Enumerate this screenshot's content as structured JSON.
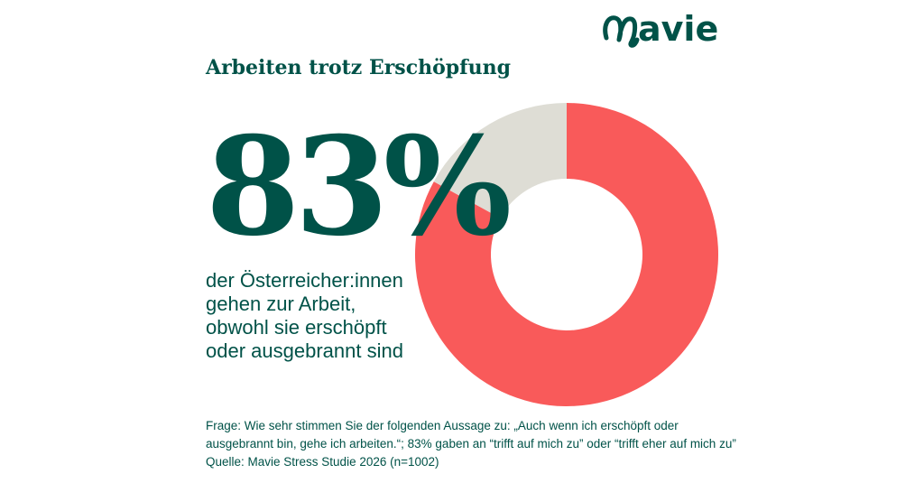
{
  "logo": {
    "text": "avie",
    "brand_name": "Mavie",
    "icon": "m-swirl-logo"
  },
  "colors": {
    "primary": "#005248",
    "highlight": "#F95A5A",
    "remainder": "#DEDDD5",
    "background": "#FFFFFF"
  },
  "title": "Arbeiten trotz Erschöpfung",
  "big_value": "83%",
  "caption": {
    "line1": "der Österreicher:innen",
    "line2": "gehen zur Arbeit,",
    "line3": "obwohl sie erschöpft",
    "line4": "oder ausgebrannt sind"
  },
  "footnote": {
    "line1": "Frage: Wie sehr stimmen Sie der folgenden Aussage zu: „Auch wenn ich erschöpft oder",
    "line2": "ausgebrannt bin, gehe ich arbeiten.“; 83% gaben an “trifft auf mich zu” oder “trifft eher auf mich zu”",
    "line3": "Quelle: Mavie Stress Studie 2026 (n=1002)"
  },
  "chart_data": {
    "type": "pie",
    "variant": "donut",
    "title": "Arbeiten trotz Erschöpfung",
    "slices": [
      {
        "label": "",
        "value": 83,
        "color": "#F95A5A"
      },
      {
        "label": "",
        "value": 17,
        "color": "#DEDDD5"
      }
    ],
    "start": "top",
    "direction": "clockwise"
  }
}
